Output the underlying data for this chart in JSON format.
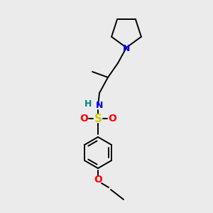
{
  "background_color": "#ebebeb",
  "figsize": [
    3.0,
    3.0
  ],
  "dpi": 100,
  "colors": {
    "N": "#0000ff",
    "S": "#cccc00",
    "O": "#ff0000",
    "C": "#000000",
    "H": "#008080",
    "bond": "#000000"
  },
  "lw": 1.4,
  "lw_thick": 1.4
}
